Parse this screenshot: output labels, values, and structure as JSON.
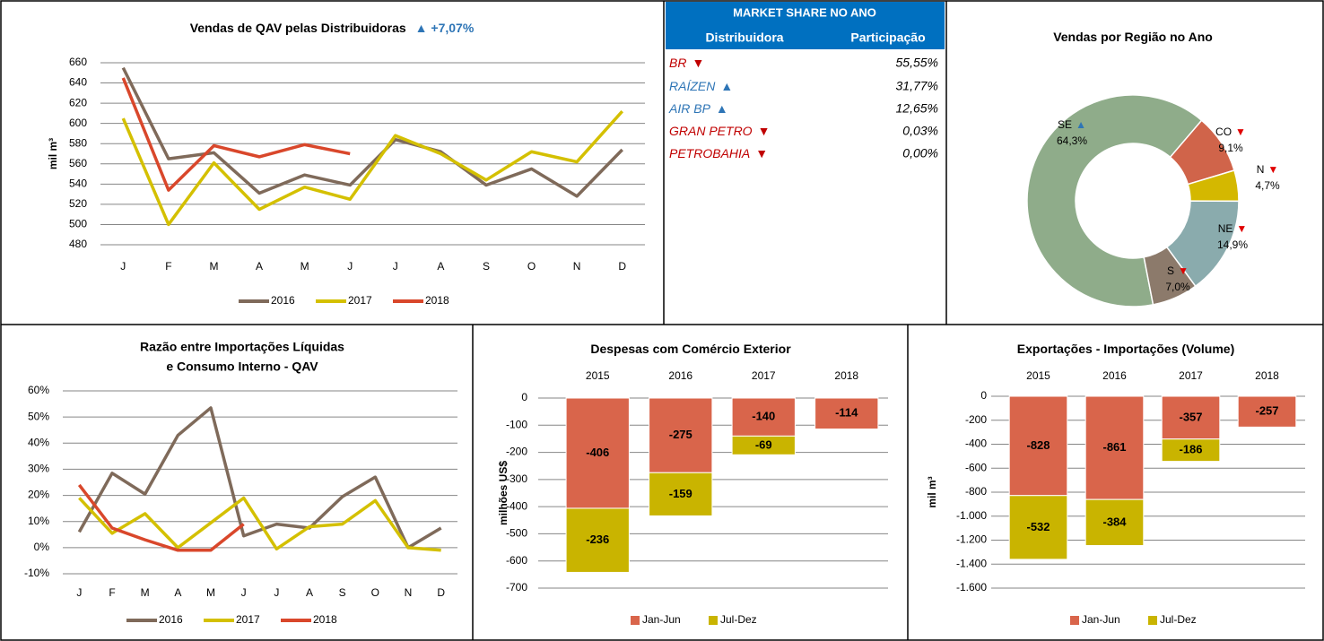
{
  "chart_data": [
    {
      "type": "line",
      "title": "Vendas de QAV pelas Distribuidoras",
      "change": "▲ +7,07%",
      "change_color": "#2e75b6",
      "ylabel": "mil m³",
      "categories": [
        "J",
        "F",
        "M",
        "A",
        "M",
        "J",
        "J",
        "A",
        "S",
        "O",
        "N",
        "D"
      ],
      "series": [
        {
          "name": "2016",
          "color": "#7f6a5a",
          "values": [
            655,
            565,
            571,
            531,
            549,
            539,
            584,
            572,
            539,
            555,
            528,
            574
          ]
        },
        {
          "name": "2017",
          "color": "#d4c000",
          "values": [
            605,
            500,
            561,
            515,
            537,
            525,
            588,
            570,
            544,
            572,
            562,
            612
          ]
        },
        {
          "name": "2018",
          "color": "#d9472b",
          "values": [
            645,
            534,
            578,
            567,
            579,
            570,
            null,
            null,
            null,
            null,
            null,
            null
          ]
        }
      ],
      "ylim": [
        480,
        660
      ],
      "yticks": [
        480,
        500,
        520,
        540,
        560,
        580,
        600,
        620,
        640,
        660
      ],
      "grid": true,
      "legend": "bottom"
    },
    {
      "type": "pie",
      "title": "Vendas por Região no Ano",
      "categories": [
        "SE",
        "CO",
        "N",
        "NE",
        "S"
      ],
      "values": [
        64.3,
        9.1,
        4.7,
        14.9,
        7.0
      ],
      "value_labels": [
        "64,3%",
        "9,1%",
        "4,7%",
        "14,9%",
        "7,0%"
      ],
      "arrows": [
        "▲",
        "▼",
        "▼",
        "▼",
        "▼"
      ],
      "arrow_colors": [
        "#2e75b6",
        "#e00000",
        "#e00000",
        "#e00000",
        "#e00000"
      ],
      "colors": [
        "#8fac8a",
        "#d0644a",
        "#d4b800",
        "#8aabad",
        "#8c7a6b"
      ],
      "donut": true
    },
    {
      "type": "line",
      "title": [
        "Razão entre Importações Líquidas",
        "e Consumo Interno - QAV"
      ],
      "categories": [
        "J",
        "F",
        "M",
        "A",
        "M",
        "J",
        "J",
        "A",
        "S",
        "O",
        "N",
        "D"
      ],
      "series": [
        {
          "name": "2016",
          "color": "#7f6a5a",
          "values": [
            6,
            28.5,
            20.5,
            43,
            53.5,
            4.5,
            9,
            7.5,
            19.5,
            27,
            0,
            7.5
          ]
        },
        {
          "name": "2017",
          "color": "#d4c000",
          "values": [
            19,
            5.5,
            13,
            0,
            9.5,
            19,
            -0.5,
            8,
            9,
            18,
            0,
            -1
          ]
        },
        {
          "name": "2018",
          "color": "#d9472b",
          "values": [
            24,
            7.5,
            3,
            -1,
            -1,
            9,
            null,
            null,
            null,
            null,
            null,
            null
          ]
        }
      ],
      "ylim": [
        -10,
        60
      ],
      "yticks": [
        {
          "value": -10,
          "label": "-10%"
        },
        {
          "value": 0,
          "label": "0%"
        },
        {
          "value": 10,
          "label": "10%"
        },
        {
          "value": 20,
          "label": "20%"
        },
        {
          "value": 30,
          "label": "30%"
        },
        {
          "value": 40,
          "label": "40%"
        },
        {
          "value": 50,
          "label": "50%"
        },
        {
          "value": 60,
          "label": "60%"
        }
      ],
      "grid": true,
      "legend": "bottom"
    },
    {
      "type": "bar",
      "stacked": true,
      "title": "Despesas com Comércio Exterior",
      "ylabel": "milhões US$",
      "categories": [
        "2015",
        "2016",
        "2017",
        "2018"
      ],
      "series": [
        {
          "name": "Jan-Jun",
          "color": "#d9654b",
          "values": [
            -406,
            -275,
            -140,
            -114
          ]
        },
        {
          "name": "Jul-Dez",
          "color": "#c9b400",
          "values": [
            -236,
            -159,
            -69,
            null
          ]
        }
      ],
      "ylim": [
        -700,
        0
      ],
      "yticks": [
        -700,
        -600,
        -500,
        -400,
        -300,
        -200,
        -100,
        0
      ],
      "grid": true,
      "legend": "bottom"
    },
    {
      "type": "bar",
      "stacked": true,
      "title": "Exportações - Importações (Volume)",
      "ylabel": "mil m³",
      "categories": [
        "2015",
        "2016",
        "2017",
        "2018"
      ],
      "series": [
        {
          "name": "Jan-Jun",
          "color": "#d9654b",
          "values": [
            -828,
            -861,
            -357,
            -257
          ]
        },
        {
          "name": "Jul-Dez",
          "color": "#c9b400",
          "values": [
            -532,
            -384,
            -186,
            null
          ]
        }
      ],
      "ylim": [
        -1600,
        0
      ],
      "yticks": [
        {
          "value": -1600,
          "label": "-1.600"
        },
        {
          "value": -1400,
          "label": "-1.400"
        },
        {
          "value": -1200,
          "label": "-1.200"
        },
        {
          "value": -1000,
          "label": "-1.000"
        },
        -800,
        -600,
        -400,
        -200,
        0
      ],
      "grid": true,
      "legend": "bottom"
    }
  ],
  "market_share": {
    "title": "MARKET SHARE NO ANO",
    "columns": [
      "Distribuidora",
      "Participação"
    ],
    "rows": [
      {
        "name": "BR",
        "trend": "▼",
        "share": "55,55%",
        "color": "#c00000",
        "trend_color": "#c00000"
      },
      {
        "name": "RAÍZEN",
        "trend": "▲",
        "share": "31,77%",
        "color": "#2e75b6",
        "trend_color": "#2e75b6"
      },
      {
        "name": "AIR BP",
        "trend": "▲",
        "share": "12,65%",
        "color": "#2e75b6",
        "trend_color": "#2e75b6"
      },
      {
        "name": "GRAN PETRO",
        "trend": "▼",
        "share": "0,03%",
        "color": "#c00000",
        "trend_color": "#c00000"
      },
      {
        "name": "PETROBAHIA",
        "trend": "▼",
        "share": "0,00%",
        "color": "#c00000",
        "trend_color": "#c00000"
      }
    ]
  }
}
